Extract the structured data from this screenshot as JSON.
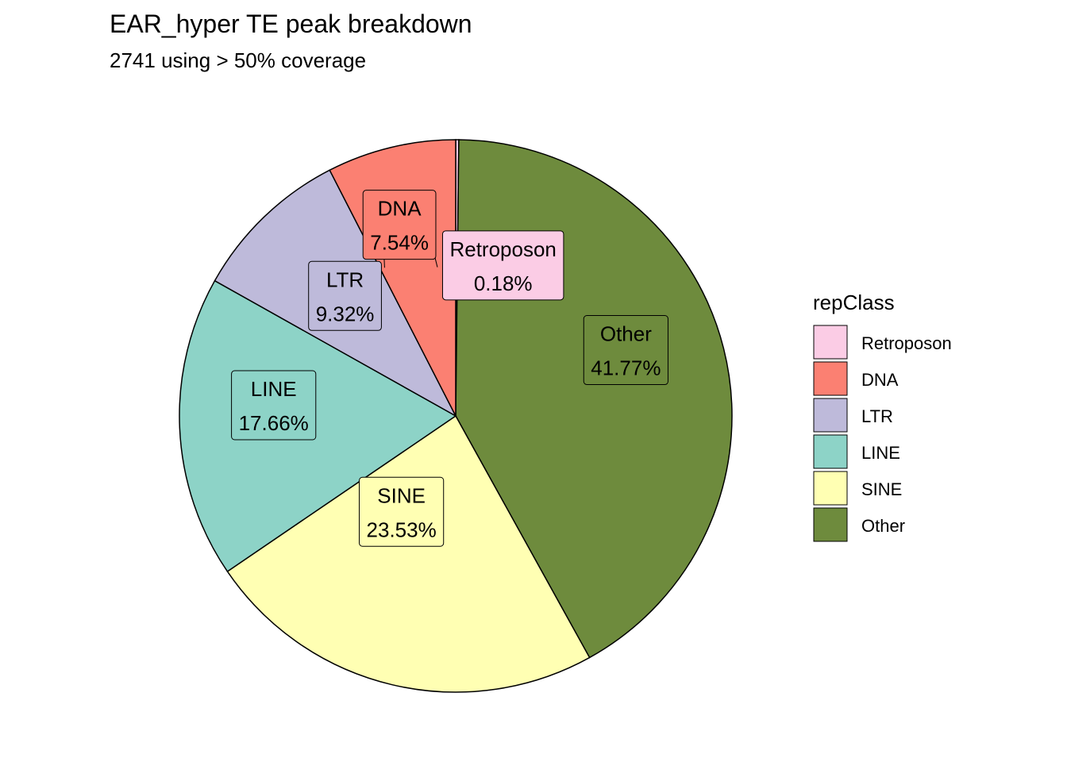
{
  "chart_data": {
    "type": "pie",
    "title": "EAR_hyper TE peak breakdown",
    "subtitle": "2741 using > 50% coverage",
    "legend": {
      "title": "repClass",
      "placement": "right"
    },
    "slices": [
      {
        "name": "Retroposon",
        "value": 0.18,
        "label": "0.18%",
        "color": "#FBCCE5"
      },
      {
        "name": "Other",
        "value": 41.77,
        "label": "41.77%",
        "color": "#6E8B3D"
      },
      {
        "name": "SINE",
        "value": 23.53,
        "label": "23.53%",
        "color": "#FFFFB3"
      },
      {
        "name": "LINE",
        "value": 17.66,
        "label": "17.66%",
        "color": "#8DD3C7"
      },
      {
        "name": "LTR",
        "value": 9.32,
        "label": "9.32%",
        "color": "#BEBADA"
      },
      {
        "name": "DNA",
        "value": 7.54,
        "label": "7.54%",
        "color": "#FB8072"
      }
    ],
    "legend_order": [
      "Retroposon",
      "DNA",
      "LTR",
      "LINE",
      "SINE",
      "Other"
    ]
  }
}
